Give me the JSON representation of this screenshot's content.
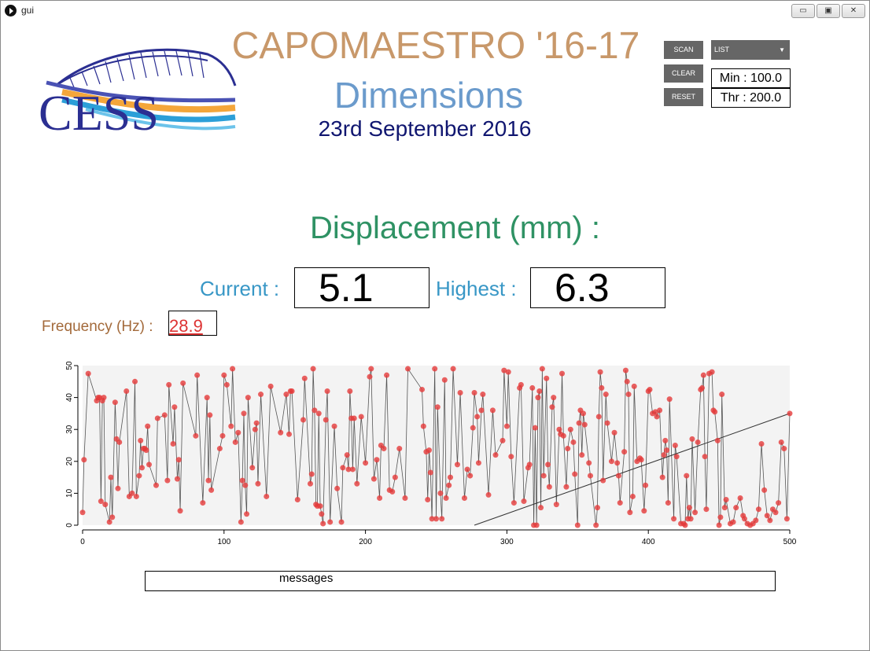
{
  "window": {
    "title": "gui",
    "controls": [
      {
        "name": "minimize-button",
        "glyph": "▭"
      },
      {
        "name": "maximize-button",
        "glyph": "▣"
      },
      {
        "name": "close-button",
        "glyph": "✕"
      }
    ]
  },
  "header": {
    "logo_text": "CESS",
    "title": "CAPOMAESTRO '16-17",
    "subtitle": "Dimensions",
    "date": "23rd September 2016"
  },
  "controls": {
    "scan_label": "SCAN",
    "clear_label": "CLEAR",
    "reset_label": "RESET",
    "list_label": "LIST",
    "min_text": "Min : 100.0",
    "thr_text": "Thr : 200.0"
  },
  "displacement": {
    "title": "Displacement (mm) :",
    "current_label": "Current :",
    "current_value": "5.1",
    "highest_label": "Highest :",
    "highest_value": "6.3"
  },
  "frequency": {
    "label": "Frequency (Hz) :",
    "value": "28.9"
  },
  "messages": {
    "text": "messages"
  },
  "chart_data": {
    "type": "scatter",
    "title": "",
    "xlabel": "",
    "ylabel": "",
    "xlim": [
      0,
      500
    ],
    "ylim": [
      0,
      50
    ],
    "xticks": [
      0,
      100,
      200,
      300,
      400,
      500
    ],
    "yticks": [
      0,
      10,
      20,
      30,
      40,
      50
    ],
    "grid": false,
    "legend": "none",
    "colors": {
      "points": "#e53a3a",
      "line": "#555555",
      "trend": "#333333",
      "plot_bg": "#f3f3f3"
    },
    "trend_line": [
      [
        277,
        0
      ],
      [
        500,
        35
      ]
    ],
    "series": [
      {
        "values": [
          [
            0,
            4
          ],
          [
            1,
            20.5
          ],
          [
            4,
            47.5
          ],
          [
            10,
            39
          ],
          [
            11,
            40
          ],
          [
            12,
            40
          ],
          [
            13,
            7.5
          ],
          [
            14,
            39
          ],
          [
            15,
            40
          ],
          [
            16,
            6.5
          ],
          [
            19,
            1
          ],
          [
            20,
            15
          ],
          [
            21,
            2.5
          ],
          [
            23,
            38.5
          ],
          [
            24,
            27
          ],
          [
            25,
            11.5
          ],
          [
            26,
            26
          ],
          [
            31,
            42
          ],
          [
            33,
            9
          ],
          [
            35,
            10
          ],
          [
            37,
            45
          ],
          [
            38,
            9
          ],
          [
            40,
            15.5
          ],
          [
            41,
            26.5
          ],
          [
            42,
            18
          ],
          [
            43,
            24
          ],
          [
            44,
            24
          ],
          [
            45,
            23.5
          ],
          [
            46,
            31
          ],
          [
            47,
            19
          ],
          [
            52,
            12.5
          ],
          [
            53,
            33.5
          ],
          [
            58,
            34.5
          ],
          [
            60,
            14
          ],
          [
            61,
            44
          ],
          [
            64,
            25.5
          ],
          [
            65,
            37
          ],
          [
            67,
            14.5
          ],
          [
            68,
            20.5
          ],
          [
            69,
            4.5
          ],
          [
            71,
            44.5
          ],
          [
            80,
            28
          ],
          [
            81,
            47
          ],
          [
            85,
            7
          ],
          [
            88,
            40
          ],
          [
            89,
            14
          ],
          [
            90,
            34.5
          ],
          [
            91,
            11
          ],
          [
            97,
            24
          ],
          [
            99,
            28
          ],
          [
            100,
            47
          ],
          [
            102,
            44
          ],
          [
            105,
            31
          ],
          [
            106,
            49
          ],
          [
            108,
            26
          ],
          [
            110,
            29
          ],
          [
            112,
            1
          ],
          [
            113,
            14
          ],
          [
            114,
            35
          ],
          [
            115,
            12.5
          ],
          [
            116,
            3.5
          ],
          [
            117,
            40
          ],
          [
            120,
            18
          ],
          [
            122,
            30
          ],
          [
            123,
            32
          ],
          [
            124,
            13
          ],
          [
            126,
            41
          ],
          [
            130,
            9
          ],
          [
            133,
            43.5
          ],
          [
            140,
            29
          ],
          [
            144,
            41
          ],
          [
            146,
            28.5
          ],
          [
            147,
            42
          ],
          [
            148,
            42
          ],
          [
            152,
            8
          ],
          [
            156,
            33
          ],
          [
            157,
            46
          ],
          [
            161,
            13
          ],
          [
            162,
            16
          ],
          [
            163,
            49
          ],
          [
            164,
            36
          ],
          [
            165,
            6.5
          ],
          [
            166,
            6
          ],
          [
            167,
            35
          ],
          [
            168,
            6
          ],
          [
            169,
            3.5
          ],
          [
            170,
            0.5
          ],
          [
            172,
            33
          ],
          [
            173,
            42
          ],
          [
            175,
            1
          ],
          [
            178,
            31
          ],
          [
            180,
            11.5
          ],
          [
            183,
            1
          ],
          [
            184,
            18
          ],
          [
            187,
            22
          ],
          [
            188,
            17.5
          ],
          [
            189,
            42
          ],
          [
            190,
            33.5
          ],
          [
            191,
            17.5
          ],
          [
            192,
            33.5
          ],
          [
            194,
            13
          ],
          [
            197,
            34
          ],
          [
            200,
            19.5
          ],
          [
            203,
            46.5
          ],
          [
            204,
            49
          ],
          [
            206,
            14.5
          ],
          [
            208,
            20.5
          ],
          [
            210,
            8.5
          ],
          [
            211,
            25
          ],
          [
            213,
            24
          ],
          [
            215,
            47
          ],
          [
            217,
            11
          ],
          [
            219,
            10.5
          ],
          [
            221,
            15
          ],
          [
            224,
            24
          ],
          [
            228,
            8.5
          ],
          [
            230,
            49
          ],
          [
            240,
            42.5
          ],
          [
            241,
            31
          ],
          [
            243,
            23
          ],
          [
            244,
            8
          ],
          [
            245,
            23.5
          ],
          [
            246,
            16.5
          ],
          [
            247,
            2
          ],
          [
            249,
            49
          ],
          [
            250,
            2
          ],
          [
            251,
            37
          ],
          [
            253,
            10
          ],
          [
            254,
            2
          ],
          [
            256,
            45.5
          ],
          [
            257,
            8.5
          ],
          [
            259,
            12.5
          ],
          [
            260,
            15
          ],
          [
            262,
            49
          ],
          [
            265,
            19
          ],
          [
            267,
            41.5
          ],
          [
            270,
            8.5
          ],
          [
            272,
            17.5
          ],
          [
            274,
            15.5
          ],
          [
            276,
            30.5
          ],
          [
            277,
            41.5
          ],
          [
            279,
            34
          ],
          [
            280,
            19.5
          ],
          [
            282,
            36
          ],
          [
            283,
            41
          ],
          [
            287,
            9.5
          ],
          [
            290,
            36
          ],
          [
            292,
            22
          ],
          [
            297,
            26.5
          ],
          [
            298,
            48.5
          ],
          [
            300,
            31
          ],
          [
            301,
            48
          ],
          [
            303,
            21.5
          ],
          [
            305,
            7
          ],
          [
            309,
            43
          ],
          [
            310,
            44
          ],
          [
            312,
            7.5
          ],
          [
            315,
            18
          ],
          [
            316,
            19
          ],
          [
            318,
            43
          ],
          [
            319,
            0
          ],
          [
            320,
            30.5
          ],
          [
            321,
            0
          ],
          [
            322,
            40
          ],
          [
            323,
            42
          ],
          [
            324,
            5.5
          ],
          [
            325,
            49
          ],
          [
            326,
            15.5
          ],
          [
            328,
            46
          ],
          [
            329,
            19
          ],
          [
            330,
            12
          ],
          [
            332,
            37
          ],
          [
            333,
            40
          ],
          [
            335,
            6.5
          ],
          [
            337,
            30
          ],
          [
            338,
            28.5
          ],
          [
            339,
            47.5
          ],
          [
            340,
            28
          ],
          [
            342,
            12
          ],
          [
            343,
            24
          ],
          [
            345,
            30
          ],
          [
            347,
            26
          ],
          [
            348,
            16
          ],
          [
            350,
            0
          ],
          [
            351,
            32
          ],
          [
            352,
            36
          ],
          [
            353,
            22
          ],
          [
            354,
            35
          ],
          [
            355,
            31.5
          ],
          [
            358,
            19.5
          ],
          [
            359,
            15.5
          ],
          [
            363,
            0
          ],
          [
            364,
            5.5
          ],
          [
            365,
            34
          ],
          [
            366,
            48
          ],
          [
            367,
            43
          ],
          [
            368,
            14
          ],
          [
            370,
            41
          ],
          [
            371,
            32
          ],
          [
            374,
            20
          ],
          [
            376,
            29
          ],
          [
            378,
            19.5
          ],
          [
            379,
            15.5
          ],
          [
            380,
            7
          ],
          [
            383,
            23
          ],
          [
            384,
            48.5
          ],
          [
            385,
            45
          ],
          [
            386,
            41
          ],
          [
            387,
            4
          ],
          [
            389,
            9
          ],
          [
            390,
            43.5
          ],
          [
            392,
            20
          ],
          [
            394,
            21
          ],
          [
            395,
            20.5
          ],
          [
            397,
            4.5
          ],
          [
            398,
            12.5
          ],
          [
            400,
            42
          ],
          [
            401,
            42.5
          ],
          [
            403,
            35
          ],
          [
            405,
            35.5
          ],
          [
            406,
            34
          ],
          [
            408,
            36
          ],
          [
            410,
            15
          ],
          [
            411,
            22
          ],
          [
            412,
            26.5
          ],
          [
            413,
            23.5
          ],
          [
            414,
            7
          ],
          [
            415,
            39.5
          ],
          [
            418,
            2
          ],
          [
            419,
            25
          ],
          [
            420,
            21.5
          ],
          [
            423,
            0.5
          ],
          [
            425,
            0.5
          ],
          [
            426,
            0
          ],
          [
            427,
            15.5
          ],
          [
            428,
            2
          ],
          [
            429,
            5.5
          ],
          [
            430,
            2
          ],
          [
            431,
            27
          ],
          [
            433,
            4
          ],
          [
            435,
            26
          ],
          [
            437,
            42.5
          ],
          [
            438,
            43
          ],
          [
            439,
            47
          ],
          [
            440,
            21.5
          ],
          [
            441,
            5
          ],
          [
            443,
            47.5
          ],
          [
            445,
            48
          ],
          [
            446,
            36
          ],
          [
            447,
            35.5
          ],
          [
            449,
            26.5
          ],
          [
            450,
            0
          ],
          [
            451,
            2.5
          ],
          [
            452,
            41
          ],
          [
            454,
            5.5
          ],
          [
            455,
            8
          ],
          [
            458,
            0.5
          ],
          [
            460,
            1
          ],
          [
            462,
            5.5
          ],
          [
            465,
            8.5
          ],
          [
            467,
            3
          ],
          [
            468,
            2
          ],
          [
            470,
            0.5
          ],
          [
            472,
            0
          ],
          [
            474,
            0.5
          ],
          [
            476,
            1.5
          ],
          [
            478,
            5
          ],
          [
            480,
            25.5
          ],
          [
            482,
            11
          ],
          [
            484,
            3
          ],
          [
            486,
            1.5
          ],
          [
            488,
            5
          ],
          [
            490,
            4
          ],
          [
            492,
            7
          ],
          [
            494,
            26
          ],
          [
            496,
            24
          ],
          [
            498,
            2
          ],
          [
            500,
            35
          ]
        ]
      }
    ]
  }
}
